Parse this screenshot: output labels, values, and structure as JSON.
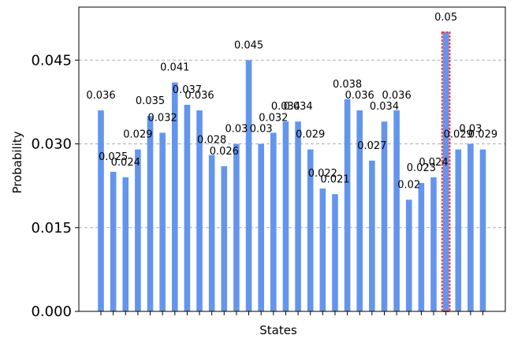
{
  "chart_data": {
    "type": "bar",
    "xlabel": "States",
    "ylabel": "Probability",
    "ylim": [
      0,
      0.0545
    ],
    "yticks": [
      "0.000",
      "0.015",
      "0.030",
      "0.045"
    ],
    "grid": "horizontal dashed",
    "bar_color": "#6495ED",
    "highlight_color": "#FF3333",
    "highlight_index": 28,
    "values": [
      0.036,
      0.025,
      0.024,
      0.029,
      0.035,
      0.032,
      0.041,
      0.037,
      0.036,
      0.028,
      0.026,
      0.03,
      0.045,
      0.03,
      0.032,
      0.034,
      0.034,
      0.029,
      0.022,
      0.021,
      0.038,
      0.036,
      0.027,
      0.034,
      0.036,
      0.02,
      0.023,
      0.024,
      0.05,
      0.029,
      0.03,
      0.029
    ],
    "labels": [
      "0.036",
      "0.025",
      "0.024",
      "0.029",
      "0.035",
      "0.032",
      "0.041",
      "0.037",
      "0.036",
      "0.028",
      "0.026",
      "0.03",
      "0.045",
      "0.03",
      "0.032",
      "0.034",
      "0.034",
      "0.029",
      "0.022",
      "0.021",
      "0.038",
      "0.036",
      "0.027",
      "0.034",
      "0.036",
      "0.02",
      "0.023",
      "0.024",
      "0.05",
      "0.029",
      "0.03",
      "0.029"
    ]
  }
}
